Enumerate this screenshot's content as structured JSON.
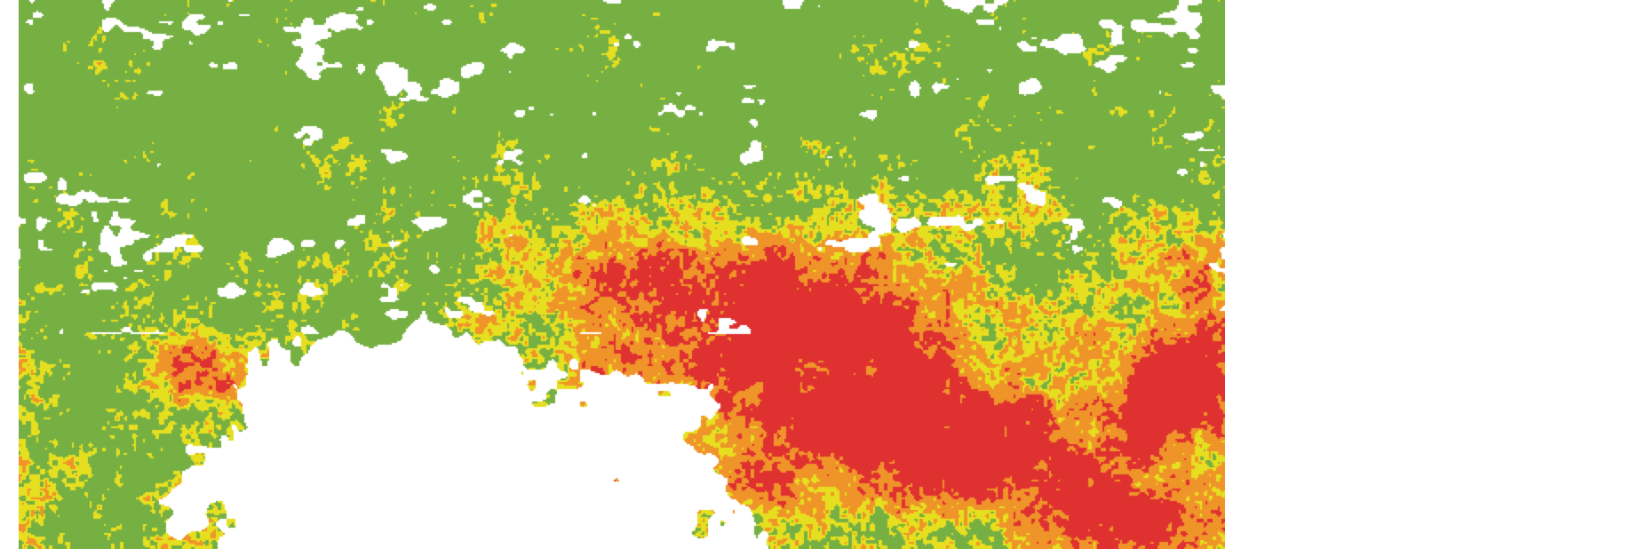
{
  "map": {
    "type": "classified raster",
    "classes": [
      {
        "color": "#76b043"
      },
      {
        "color": "#e6df1f"
      },
      {
        "color": "#ef9429"
      },
      {
        "color": "#e03131"
      }
    ],
    "no_data_color": "#ffffff"
  }
}
